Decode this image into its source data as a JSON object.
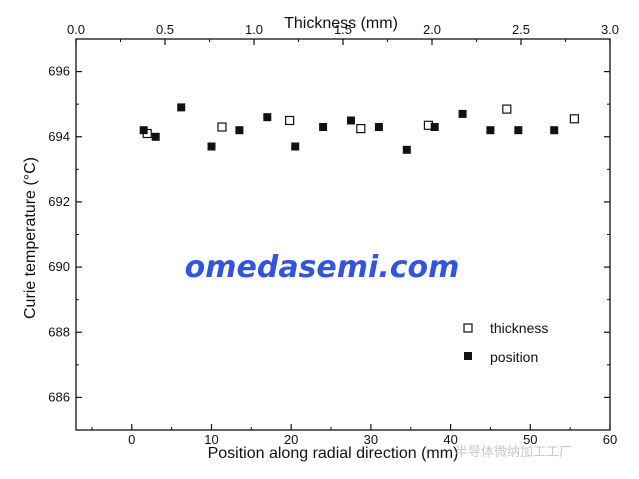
{
  "chart_data": {
    "type": "scatter",
    "ylabel": "Curie temperature (°C)",
    "xlabel": "Position along radial direction (mm)",
    "x2label": "Thickness (mm)",
    "xlim": [
      -7,
      60
    ],
    "x2lim": [
      0.0,
      3.0
    ],
    "ylim": [
      685,
      697
    ],
    "xticks": [
      "0",
      "10",
      "20",
      "30",
      "40",
      "50",
      "60"
    ],
    "x2ticks": [
      "0.0",
      "0.5",
      "1.0",
      "1.5",
      "2.0",
      "2.5",
      "3.0"
    ],
    "yticks": [
      "686",
      "688",
      "690",
      "692",
      "694",
      "696"
    ],
    "legend_position": "bottom-right",
    "series": [
      {
        "name": "thickness",
        "marker": "open-square",
        "axis": "top",
        "x": [
          0.4,
          0.82,
          1.2,
          1.6,
          1.98,
          2.42,
          2.8
        ],
        "y": [
          694.1,
          694.3,
          694.5,
          694.25,
          694.35,
          694.85,
          694.55
        ]
      },
      {
        "name": "position",
        "marker": "filled-square",
        "axis": "bottom",
        "x": [
          1.5,
          3.0,
          6.2,
          10.0,
          13.5,
          17.0,
          20.5,
          24.0,
          27.5,
          31.0,
          34.5,
          38.0,
          41.5,
          45.0,
          48.5,
          53.0
        ],
        "y": [
          694.2,
          694.0,
          694.9,
          693.7,
          694.2,
          694.6,
          693.7,
          694.3,
          694.5,
          694.3,
          693.6,
          694.3,
          694.7,
          694.2,
          694.2,
          694.2
        ]
      }
    ]
  },
  "watermark": "omedasemi.com",
  "source_note": "半导体微纳加工工厂",
  "colors": {
    "watermark": "#3355dd",
    "marker": "#111111",
    "axis": "#111111"
  }
}
